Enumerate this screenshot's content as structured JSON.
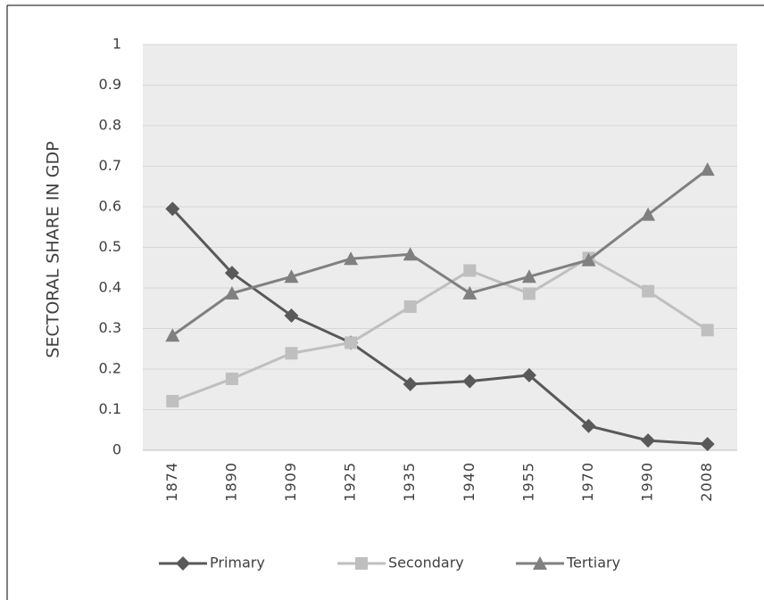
{
  "chart_data": {
    "type": "line",
    "y_label": "SECTORAL SHARE IN GDP",
    "categories": [
      "1874",
      "1890",
      "1909",
      "1925",
      "1935",
      "1940",
      "1955",
      "1970",
      "1990",
      "2008"
    ],
    "series": [
      {
        "name": "Primary",
        "color": "#595959",
        "marker": "diamond",
        "values": [
          0.595,
          0.437,
          0.332,
          0.265,
          0.163,
          0.17,
          0.185,
          0.06,
          0.024,
          0.015
        ]
      },
      {
        "name": "Secondary",
        "color": "#bfbfbf",
        "marker": "square",
        "values": [
          0.121,
          0.176,
          0.239,
          0.265,
          0.354,
          0.443,
          0.386,
          0.474,
          0.392,
          0.296
        ]
      },
      {
        "name": "Tertiary",
        "color": "#808080",
        "marker": "triangle",
        "values": [
          0.283,
          0.387,
          0.428,
          0.472,
          0.483,
          0.387,
          0.428,
          0.469,
          0.581,
          0.692
        ]
      }
    ],
    "ylim": [
      0,
      1
    ],
    "yticks": [
      0,
      0.1,
      0.2,
      0.3,
      0.4,
      0.5,
      0.6,
      0.7,
      0.8,
      0.9,
      1
    ],
    "grid": true,
    "legend": "bottom"
  }
}
